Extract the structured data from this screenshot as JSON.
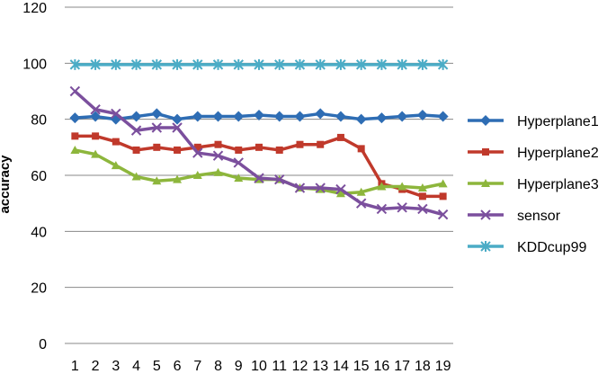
{
  "chart_data": {
    "type": "line",
    "ylabel": "accuracy",
    "xlabel": "",
    "ylim": [
      0,
      120
    ],
    "yticks": [
      0,
      20,
      40,
      60,
      80,
      100,
      120
    ],
    "categories": [
      "1",
      "2",
      "3",
      "4",
      "5",
      "6",
      "7",
      "8",
      "9",
      "10",
      "11",
      "12",
      "13",
      "14",
      "15",
      "16",
      "17",
      "18",
      "19"
    ],
    "grid": "horizontal",
    "legend_position": "right",
    "series": [
      {
        "name": "Hyperplane1",
        "color": "#2E6DB4",
        "marker": "diamond",
        "values": [
          80.5,
          81,
          80,
          81,
          82,
          80,
          81,
          81,
          81,
          81.5,
          81,
          81,
          82,
          81,
          80,
          80.5,
          81,
          81.5,
          81
        ]
      },
      {
        "name": "Hyperplane2",
        "color": "#C0392B",
        "marker": "square",
        "values": [
          74,
          74,
          72,
          69,
          70,
          69,
          70,
          71,
          69,
          70,
          69,
          71,
          71,
          73.5,
          69.5,
          57,
          55,
          52.5,
          52.5
        ]
      },
      {
        "name": "Hyperplane3",
        "color": "#8DB63C",
        "marker": "triangle",
        "values": [
          69,
          67.5,
          63.5,
          59.5,
          58,
          58.5,
          60,
          61,
          59,
          58.5,
          58.5,
          55.5,
          55,
          53.5,
          54,
          56,
          56,
          55.5,
          57
        ]
      },
      {
        "name": "sensor",
        "color": "#7B4F9D",
        "marker": "x",
        "values": [
          90,
          83.5,
          82,
          76,
          77,
          77,
          68,
          67,
          64.5,
          59,
          58.5,
          55.5,
          55.5,
          55,
          50,
          48,
          48.5,
          48,
          46
        ]
      },
      {
        "name": "KDDcup99",
        "color": "#4BACC6",
        "marker": "asterisk",
        "values": [
          99.5,
          99.5,
          99.5,
          99.5,
          99.5,
          99.5,
          99.5,
          99.5,
          99.5,
          99.5,
          99.5,
          99.5,
          99.5,
          99.5,
          99.5,
          99.5,
          99.5,
          99.5,
          99.5
        ]
      }
    ]
  }
}
